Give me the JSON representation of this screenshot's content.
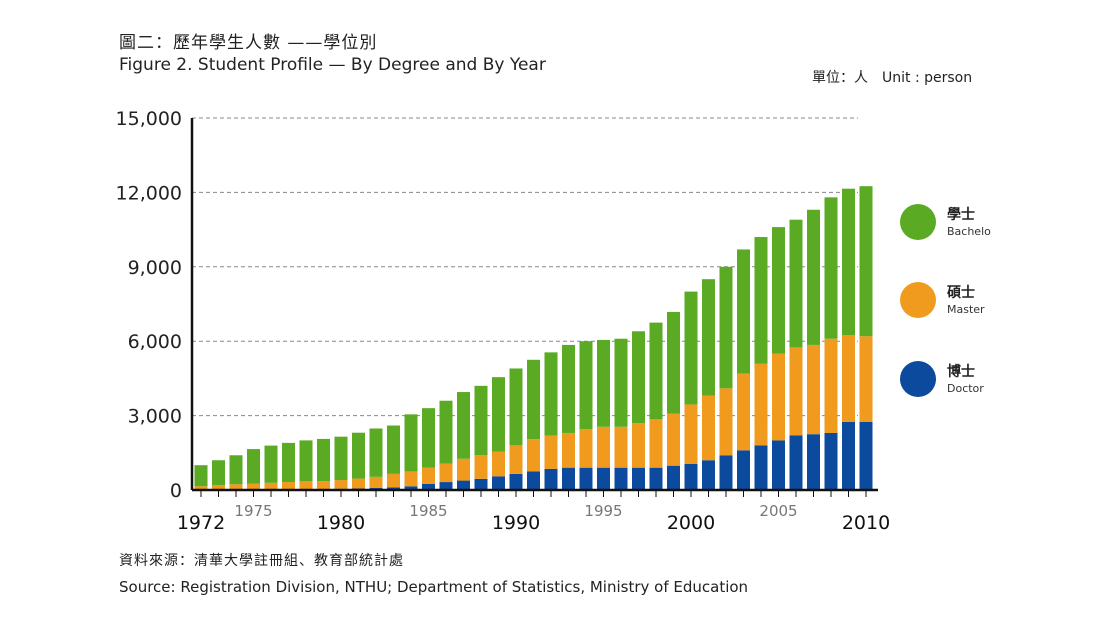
{
  "title_zh": "圖二：歷年學生人數 ——學位別",
  "title_en": "Figure 2. Student Profile — By Degree and By Year",
  "unit_zh": "單位：人",
  "unit_en": "Unit : person",
  "source_zh": "資料來源：清華大學註冊組、教育部統計處",
  "source_en": "Source: Registration Division, NTHU; Department of Statistics, Ministry of Education",
  "colors": {
    "bachelor": "#5aaa23",
    "master": "#f09a1e",
    "doctor": "#0b4a9c"
  },
  "chart_data": {
    "type": "bar",
    "stacked": true,
    "x": [
      1972,
      1973,
      1974,
      1975,
      1976,
      1977,
      1978,
      1979,
      1980,
      1981,
      1982,
      1983,
      1984,
      1985,
      1986,
      1987,
      1988,
      1989,
      1990,
      1991,
      1992,
      1993,
      1994,
      1995,
      1996,
      1997,
      1998,
      1999,
      2000,
      2001,
      2002,
      2003,
      2004,
      2005,
      2006,
      2007,
      2008,
      2009,
      2010
    ],
    "ylim": [
      0,
      15000
    ],
    "yticks": [
      "0",
      "3,000",
      "6,000",
      "9,000",
      "12,000",
      "15,000"
    ],
    "yticks_values": [
      0,
      3000,
      6000,
      9000,
      12000,
      15000
    ],
    "xticks_major": [
      "1972",
      "1980",
      "1990",
      "2000",
      "2010"
    ],
    "xticks_minor": [
      "1975",
      "1985",
      "1995",
      "2005"
    ],
    "grid": true,
    "legend_position": "right",
    "series": [
      {
        "key": "doctor",
        "name_zh": "博士",
        "name": "Doctor",
        "values": [
          0,
          0,
          0,
          0,
          10,
          20,
          30,
          40,
          50,
          60,
          80,
          100,
          150,
          250,
          320,
          380,
          450,
          550,
          650,
          750,
          850,
          900,
          900,
          900,
          900,
          900,
          900,
          980,
          1050,
          1200,
          1400,
          1600,
          1800,
          2000,
          2200,
          2250,
          2300,
          2750,
          2750
        ]
      },
      {
        "key": "master",
        "name_zh": "碩士",
        "name": "Master",
        "values": [
          150,
          200,
          230,
          250,
          280,
          300,
          320,
          320,
          350,
          400,
          450,
          550,
          600,
          650,
          750,
          880,
          950,
          1000,
          1150,
          1300,
          1350,
          1400,
          1550,
          1650,
          1650,
          1800,
          1950,
          2100,
          2400,
          2600,
          2700,
          3100,
          3300,
          3500,
          3550,
          3600,
          3800,
          3500,
          3450
        ]
      },
      {
        "key": "bachelor",
        "name_zh": "學士",
        "name": "Bachelo",
        "values": [
          850,
          1000,
          1170,
          1400,
          1500,
          1580,
          1650,
          1700,
          1750,
          1850,
          1950,
          1950,
          2300,
          2400,
          2530,
          2690,
          2800,
          3000,
          3100,
          3200,
          3350,
          3550,
          3550,
          3500,
          3550,
          3700,
          3900,
          4100,
          4550,
          4700,
          4900,
          5000,
          5100,
          5100,
          5150,
          5450,
          5700,
          5900,
          6050
        ]
      }
    ]
  }
}
